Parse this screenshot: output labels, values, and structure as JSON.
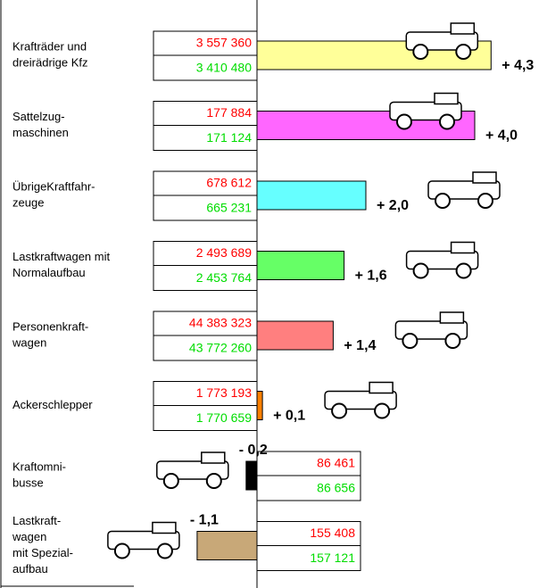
{
  "chart_data": {
    "type": "bar",
    "orientation": "horizontal",
    "categories": [
      [
        "Krafträder und",
        "dreirädrige Kfz"
      ],
      [
        "Sattelzug-",
        "maschinen"
      ],
      [
        "ÜbrigeKraftfahr-",
        "zeuge"
      ],
      [
        "Lastkraftwagen mit",
        "Normalaufbau"
      ],
      [
        "Personenkraft-",
        "wagen"
      ],
      [
        "Ackerschlepper"
      ],
      [
        "Kraftomni-",
        "busse"
      ],
      [
        "Lastkraft-",
        "wagen",
        "mit Spezial-",
        "aufbau"
      ]
    ],
    "values": [
      4.3,
      4.0,
      2.0,
      1.6,
      1.4,
      0.1,
      -0.2,
      -1.1
    ],
    "value_labels": [
      "+ 4,3",
      "+ 4,0",
      "+ 2,0",
      "+ 1,6",
      "+ 1,4",
      "+ 0,1",
      "- 0,2",
      "- 1,1"
    ],
    "colors": [
      "#ffff99",
      "#ff66ff",
      "#66ffff",
      "#66ff66",
      "#ff7f7f",
      "#ff8000",
      "#000000",
      "#c8a878"
    ],
    "figures": [
      {
        "top": "3 557 360",
        "bottom": "3 410 480"
      },
      {
        "top": "177 884",
        "bottom": "171 124"
      },
      {
        "top": "678 612",
        "bottom": "665 231"
      },
      {
        "top": "2 493 689",
        "bottom": "2 453 764"
      },
      {
        "top": "44 383 323",
        "bottom": "43 772 260"
      },
      {
        "top": "1 773 193",
        "bottom": "1 770 659"
      },
      {
        "top": "86 461",
        "bottom": "86 656"
      },
      {
        "top": "155 408",
        "bottom": "157 121"
      }
    ],
    "top_color": "#ff0000",
    "bottom_color": "#00dd00",
    "xlim": [
      -1.5,
      5
    ]
  }
}
